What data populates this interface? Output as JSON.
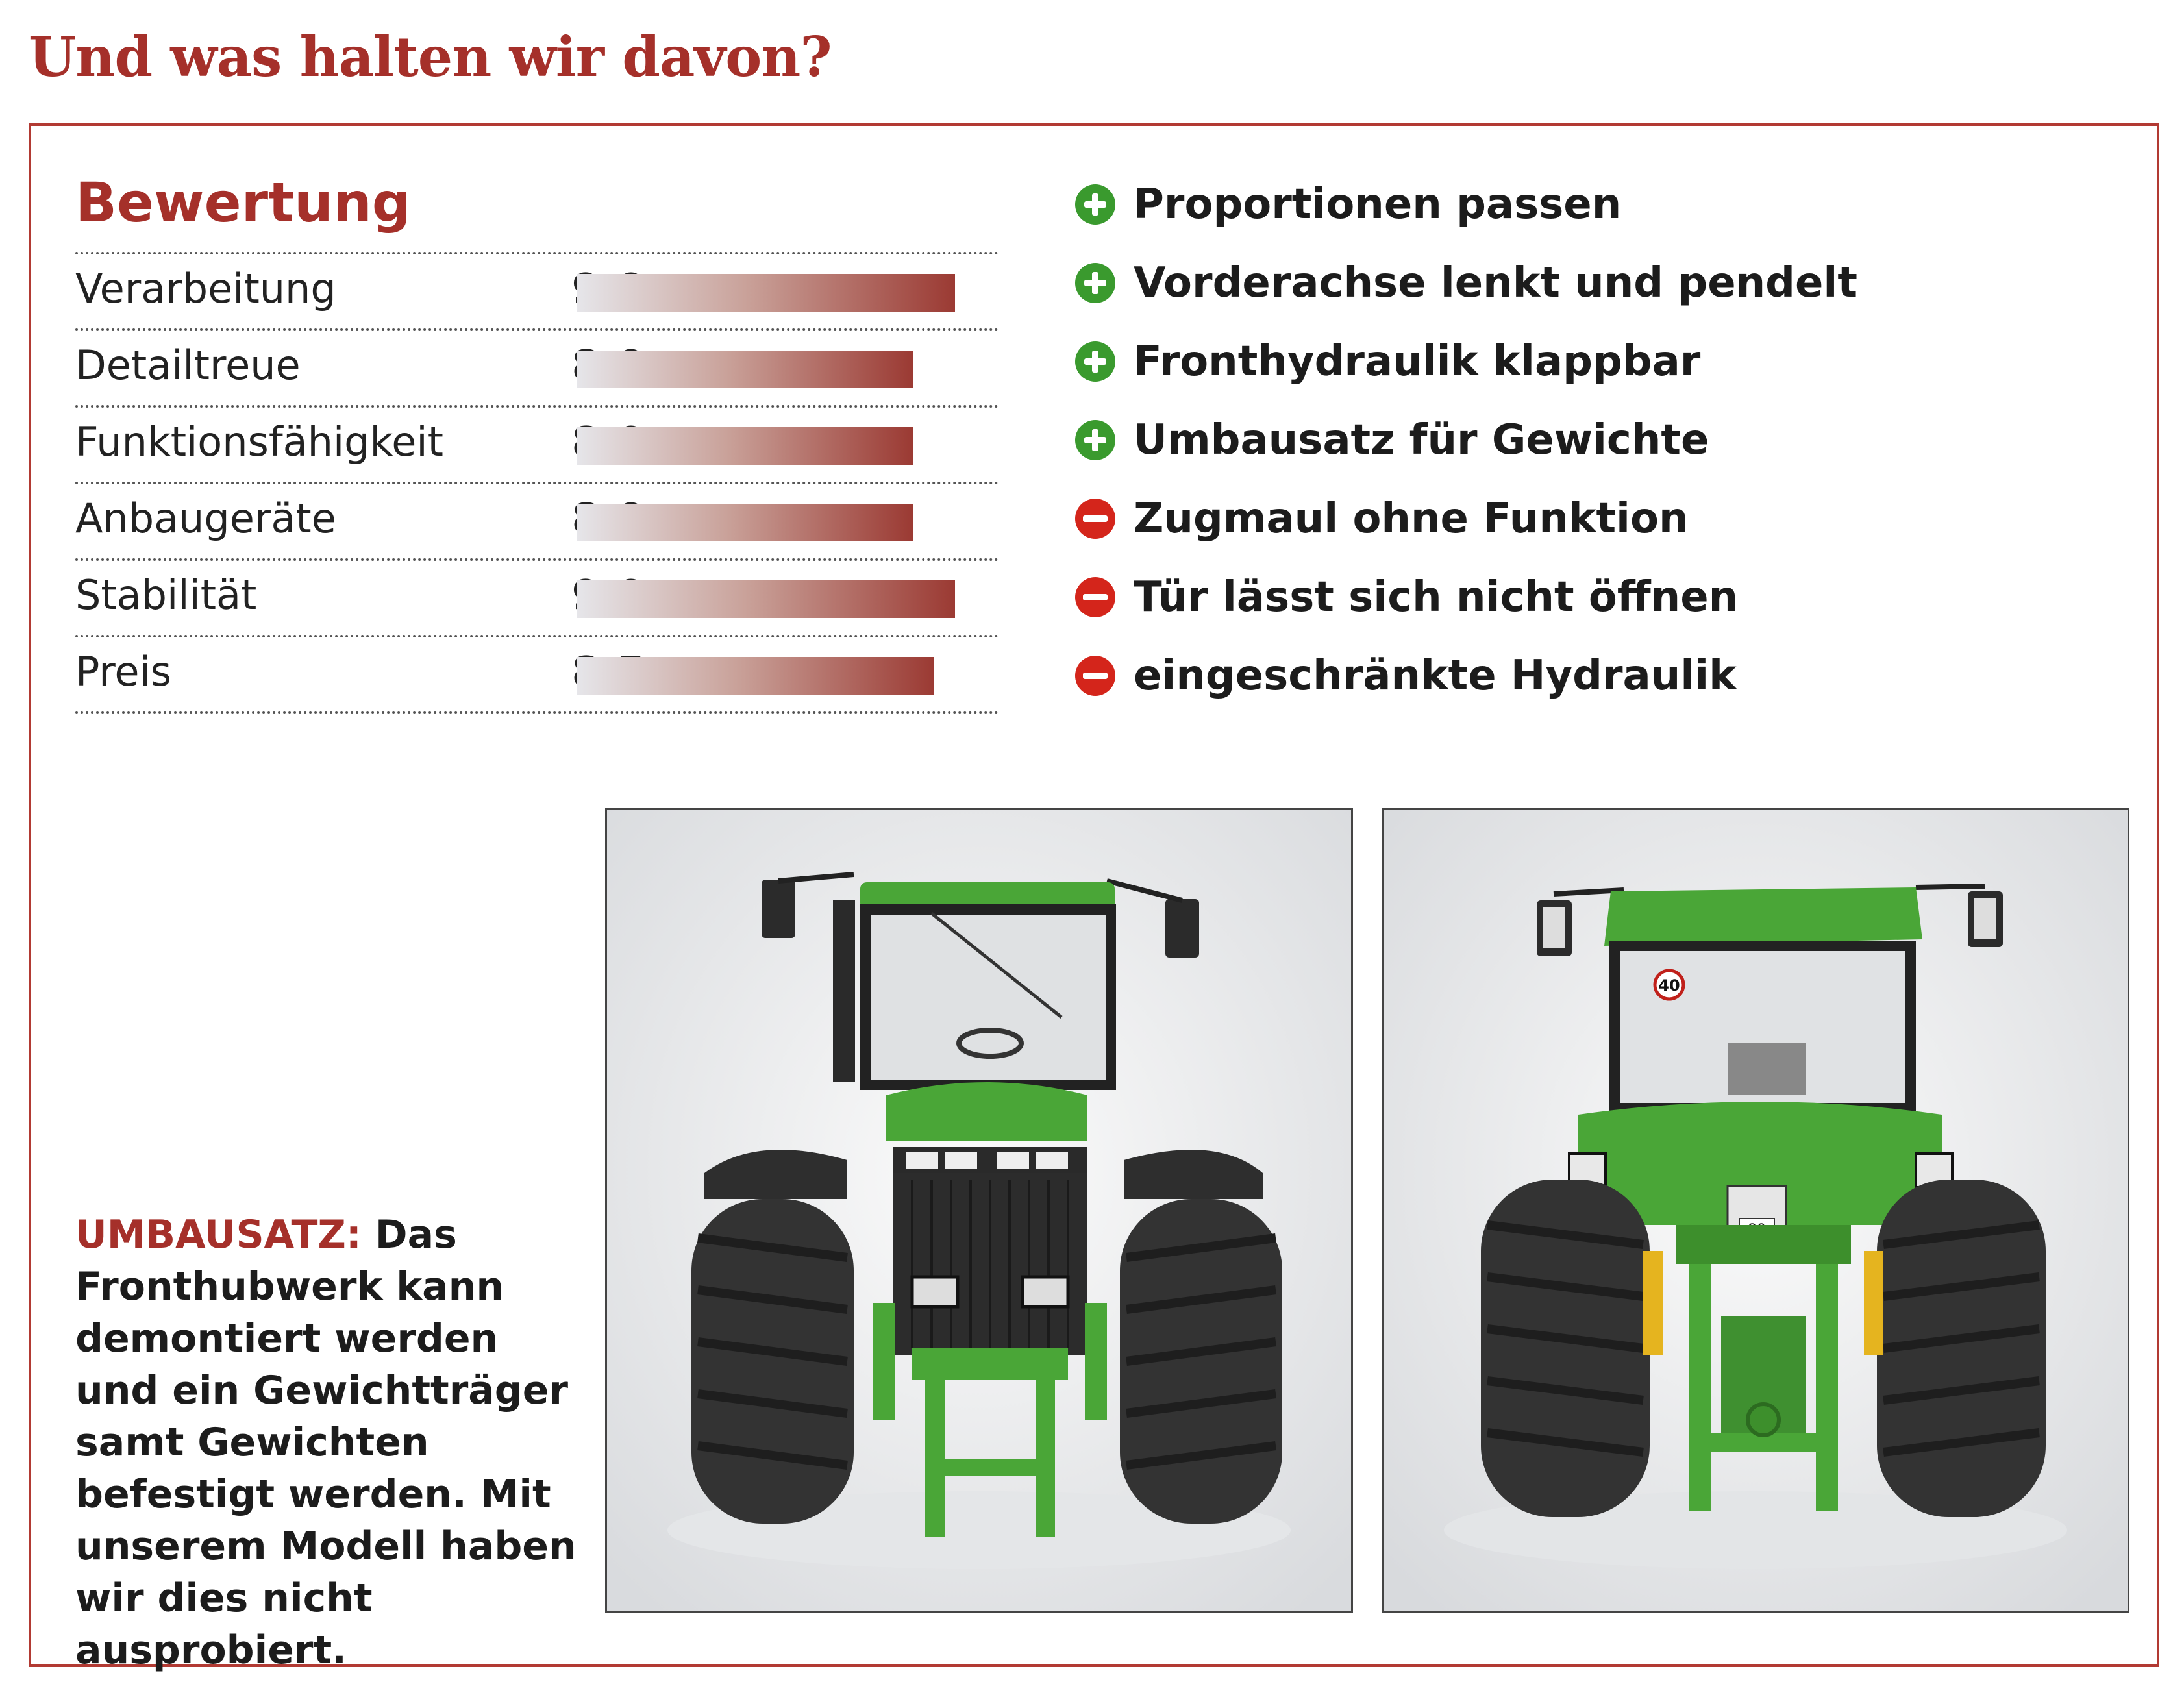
{
  "headline": "Und was halten wir davon?",
  "rating_section": {
    "title": "Bewertung",
    "max_score": 10,
    "items": [
      {
        "label": "Verarbeitung",
        "value_text": "9,0",
        "score": 9.0
      },
      {
        "label": "Detailtreue",
        "value_text": "8,0",
        "score": 8.0
      },
      {
        "label": "Funktionsfähigkeit",
        "value_text": "8,0",
        "score": 8.0
      },
      {
        "label": "Anbaugeräte",
        "value_text": "8,0",
        "score": 8.0
      },
      {
        "label": "Stabilität",
        "value_text": "9,0",
        "score": 9.0
      },
      {
        "label": "Preis",
        "value_text": "8,5",
        "score": 8.5
      }
    ]
  },
  "pros_cons": [
    {
      "type": "pro",
      "icon": "plus-circle-icon",
      "text": "Proportionen passen"
    },
    {
      "type": "pro",
      "icon": "plus-circle-icon",
      "text": "Vorderachse lenkt und pendelt"
    },
    {
      "type": "pro",
      "icon": "plus-circle-icon",
      "text": "Fronthydraulik klappbar"
    },
    {
      "type": "pro",
      "icon": "plus-circle-icon",
      "text": "Umbausatz für Gewichte"
    },
    {
      "type": "con",
      "icon": "minus-circle-icon",
      "text": "Zugmaul ohne Funktion"
    },
    {
      "type": "con",
      "icon": "minus-circle-icon",
      "text": "Tür lässt sich nicht öffnen"
    },
    {
      "type": "con",
      "icon": "minus-circle-icon",
      "text": "eingeschränkte Hydraulik"
    }
  ],
  "caption": {
    "keyword": "UMBAUSATZ:",
    "text": "Das Fronthubwerk kann demontiert werden und ein Gewichtträger samt Gewichten befestigt werden. Mit unserem Modell haben wir dies nicht ausprobiert."
  },
  "photos": {
    "front": {
      "plate_text": ""
    },
    "rear": {
      "speed_sign": "40",
      "plate_number": "80"
    }
  },
  "colors": {
    "accent": "#a5302a",
    "frame": "#b23a33",
    "pro": "#3a9a2e",
    "con": "#d4251b",
    "tractor_green": "#4aa637"
  }
}
